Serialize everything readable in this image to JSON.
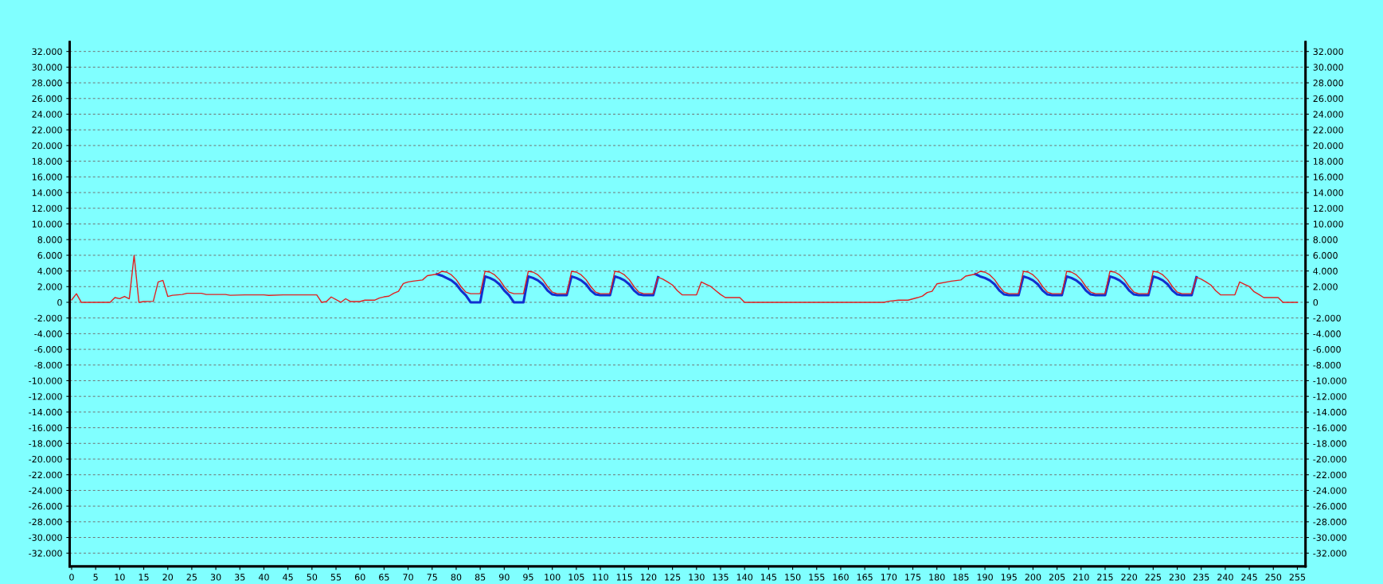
{
  "chart_data": {
    "type": "line",
    "xlim": [
      -0.4,
      256.7
    ],
    "xticks": [
      0,
      5,
      10,
      15,
      20,
      25,
      30,
      35,
      40,
      45,
      50,
      55,
      60,
      65,
      70,
      75,
      80,
      85,
      90,
      95,
      100,
      105,
      110,
      115,
      120,
      125,
      130,
      135,
      140,
      145,
      150,
      155,
      160,
      165,
      170,
      175,
      180,
      185,
      190,
      195,
      200,
      205,
      210,
      215,
      220,
      225,
      230,
      235,
      240,
      245,
      250,
      255
    ],
    "ylim": [
      -33700,
      33200
    ],
    "yticks": [
      {
        "value": -32000,
        "label": "-32.000"
      },
      {
        "value": -30000,
        "label": "-30.000"
      },
      {
        "value": -28000,
        "label": "-28.000"
      },
      {
        "value": -26000,
        "label": "-26.000"
      },
      {
        "value": -24000,
        "label": "-24.000"
      },
      {
        "value": -22000,
        "label": "-22.000"
      },
      {
        "value": -20000,
        "label": "-20.000"
      },
      {
        "value": -18000,
        "label": "-18.000"
      },
      {
        "value": -16000,
        "label": "-16.000"
      },
      {
        "value": -14000,
        "label": "-14.000"
      },
      {
        "value": -12000,
        "label": "-12.000"
      },
      {
        "value": -10000,
        "label": "-10.000"
      },
      {
        "value": -8000,
        "label": "-8.000"
      },
      {
        "value": -6000,
        "label": "-6.000"
      },
      {
        "value": -4000,
        "label": "-4.000"
      },
      {
        "value": -2000,
        "label": "-2.000"
      },
      0,
      {
        "value": 2000,
        "label": "2.000"
      },
      {
        "value": 4000,
        "label": "4.000"
      },
      {
        "value": 6000,
        "label": "6.000"
      },
      {
        "value": 8000,
        "label": "8.000"
      },
      {
        "value": 10000,
        "label": "10.000"
      },
      {
        "value": 12000,
        "label": "12.000"
      },
      {
        "value": 14000,
        "label": "14.000"
      },
      {
        "value": 16000,
        "label": "16.000"
      },
      {
        "value": 18000,
        "label": "18.000"
      },
      {
        "value": 20000,
        "label": "20.000"
      },
      {
        "value": 22000,
        "label": "22.000"
      },
      {
        "value": 24000,
        "label": "24.000"
      },
      {
        "value": 26000,
        "label": "26.000"
      },
      {
        "value": 28000,
        "label": "28.000"
      },
      {
        "value": 30000,
        "label": "30.000"
      },
      {
        "value": 32000,
        "label": "32.000"
      }
    ],
    "y2lim": [
      -33700,
      33200
    ],
    "y2ticks": [
      {
        "value": -32000,
        "label": "-32.000"
      },
      {
        "value": -30000,
        "label": "-30.000"
      },
      {
        "value": -28000,
        "label": "-28.000"
      },
      {
        "value": -26000,
        "label": "-26.000"
      },
      {
        "value": -24000,
        "label": "-24.000"
      },
      {
        "value": -22000,
        "label": "-22.000"
      },
      {
        "value": -20000,
        "label": "-20.000"
      },
      {
        "value": -18000,
        "label": "-18.000"
      },
      {
        "value": -16000,
        "label": "-16.000"
      },
      {
        "value": -14000,
        "label": "-14.000"
      },
      {
        "value": -12000,
        "label": "-12.000"
      },
      {
        "value": -10000,
        "label": "-10.000"
      },
      {
        "value": -8000,
        "label": "-8.000"
      },
      {
        "value": -6000,
        "label": "-6.000"
      },
      {
        "value": -4000,
        "label": "-4.000"
      },
      {
        "value": -2000,
        "label": "-2.000"
      },
      0,
      {
        "value": 2000,
        "label": "2.000"
      },
      {
        "value": 4000,
        "label": "4.000"
      },
      {
        "value": 6000,
        "label": "6.000"
      },
      {
        "value": 8000,
        "label": "8.000"
      },
      {
        "value": 10000,
        "label": "10.000"
      },
      {
        "value": 12000,
        "label": "12.000"
      },
      {
        "value": 14000,
        "label": "14.000"
      },
      {
        "value": 16000,
        "label": "16.000"
      },
      {
        "value": 18000,
        "label": "18.000"
      },
      {
        "value": 20000,
        "label": "20.000"
      },
      {
        "value": 22000,
        "label": "22.000"
      },
      {
        "value": 24000,
        "label": "24.000"
      },
      {
        "value": 26000,
        "label": "26.000"
      },
      {
        "value": 28000,
        "label": "28.000"
      },
      {
        "value": 30000,
        "label": "30.000"
      },
      {
        "value": 32000,
        "label": "32.000"
      }
    ],
    "grid": "y",
    "series": [
      {
        "color": "#1030d0",
        "x": [
          76,
          77,
          78,
          79,
          80,
          81,
          82,
          83,
          85,
          86,
          87,
          88,
          89,
          90,
          91,
          92,
          94,
          95,
          96,
          97,
          98,
          99,
          100,
          101,
          103,
          104,
          105,
          106,
          107,
          108,
          109,
          110,
          112,
          113,
          114,
          115,
          116,
          117,
          118,
          119,
          121,
          122,
          150,
          188,
          189,
          190,
          191,
          192,
          193,
          194,
          195,
          197,
          198,
          199,
          200,
          201,
          202,
          203,
          204,
          206,
          207,
          208,
          209,
          210,
          211,
          212,
          213,
          215,
          216,
          217,
          218,
          219,
          220,
          221,
          222,
          224,
          225,
          226,
          227,
          228,
          229,
          230,
          231,
          233,
          234
        ],
        "values": [
          3600,
          3400,
          3100,
          2800,
          2300,
          1500,
          900,
          0,
          0,
          3300,
          3100,
          2800,
          2300,
          1500,
          900,
          0,
          0,
          3300,
          3100,
          2800,
          2300,
          1500,
          1000,
          900,
          900,
          3300,
          3100,
          2800,
          2300,
          1500,
          1000,
          900,
          900,
          3300,
          3100,
          2800,
          2300,
          1500,
          1000,
          900,
          900,
          3200,
          null,
          3600,
          3300,
          3100,
          2800,
          2300,
          1500,
          1000,
          900,
          900,
          3300,
          3100,
          2800,
          2300,
          1500,
          1000,
          900,
          900,
          3300,
          3100,
          2800,
          2300,
          1500,
          1000,
          900,
          900,
          3300,
          3100,
          2800,
          2300,
          1500,
          1000,
          900,
          900,
          3300,
          3100,
          2800,
          2300,
          1500,
          1000,
          900,
          900,
          3200
        ]
      },
      {
        "color": "#e02020",
        "x": [
          0,
          1,
          2,
          8,
          9,
          10,
          11,
          12,
          13,
          14,
          15,
          17,
          18,
          19,
          20,
          21,
          23,
          24,
          27,
          28,
          32,
          33,
          36,
          40,
          41,
          44,
          51,
          52,
          53,
          54,
          56,
          57,
          58,
          60,
          61,
          63,
          64,
          65,
          66,
          67,
          68,
          69,
          70,
          71,
          73,
          74,
          76,
          77,
          78,
          79,
          80,
          81,
          82,
          83,
          85,
          86,
          87,
          88,
          89,
          90,
          91,
          92,
          94,
          95,
          96,
          97,
          98,
          99,
          100,
          101,
          103,
          104,
          105,
          106,
          107,
          108,
          109,
          110,
          112,
          113,
          114,
          115,
          116,
          117,
          118,
          119,
          121,
          122,
          123,
          124,
          125,
          126,
          127,
          130,
          131,
          132,
          133,
          134,
          135,
          136,
          139,
          140,
          169,
          170,
          172,
          174,
          176,
          177,
          178,
          179,
          180,
          183,
          185,
          186,
          188,
          189,
          190,
          191,
          192,
          193,
          194,
          195,
          197,
          198,
          199,
          200,
          201,
          202,
          203,
          204,
          206,
          207,
          208,
          209,
          210,
          211,
          212,
          213,
          215,
          216,
          217,
          218,
          219,
          220,
          221,
          222,
          224,
          225,
          226,
          227,
          228,
          229,
          230,
          231,
          233,
          234,
          235,
          236,
          237,
          238,
          239,
          242,
          243,
          244,
          245,
          246,
          247,
          248,
          251,
          252,
          255
        ],
        "values": [
          300,
          1100,
          0,
          0,
          600,
          470,
          750,
          450,
          6000,
          0,
          100,
          130,
          2600,
          2800,
          750,
          900,
          1000,
          1150,
          1150,
          1000,
          1000,
          900,
          950,
          950,
          880,
          950,
          950,
          0,
          100,
          680,
          0,
          450,
          100,
          100,
          270,
          270,
          540,
          700,
          780,
          1150,
          1400,
          2400,
          2600,
          2700,
          2850,
          3400,
          3600,
          3950,
          3850,
          3500,
          2900,
          2000,
          1300,
          1100,
          1100,
          3950,
          3850,
          3500,
          2900,
          2000,
          1300,
          1100,
          1100,
          3950,
          3850,
          3500,
          2900,
          2000,
          1300,
          1100,
          1100,
          3950,
          3850,
          3500,
          2900,
          2000,
          1300,
          1100,
          1100,
          3950,
          3850,
          3500,
          2900,
          2000,
          1300,
          1100,
          1100,
          3200,
          2950,
          2600,
          2200,
          1500,
          950,
          950,
          2600,
          2300,
          2000,
          1500,
          1000,
          600,
          600,
          0,
          0,
          130,
          270,
          270,
          600,
          800,
          1250,
          1400,
          2350,
          2700,
          2850,
          3350,
          3600,
          3950,
          3850,
          3500,
          2900,
          2000,
          1300,
          1100,
          1100,
          3950,
          3850,
          3500,
          2900,
          2000,
          1300,
          1100,
          1100,
          3950,
          3850,
          3500,
          2900,
          2000,
          1300,
          1100,
          1100,
          3950,
          3850,
          3500,
          2900,
          2000,
          1300,
          1100,
          1100,
          3950,
          3850,
          3500,
          2900,
          2000,
          1300,
          1100,
          1100,
          3200,
          2950,
          2600,
          2200,
          1500,
          950,
          950,
          2600,
          2300,
          2000,
          1350,
          1000,
          600,
          600,
          0,
          0
        ]
      }
    ]
  }
}
